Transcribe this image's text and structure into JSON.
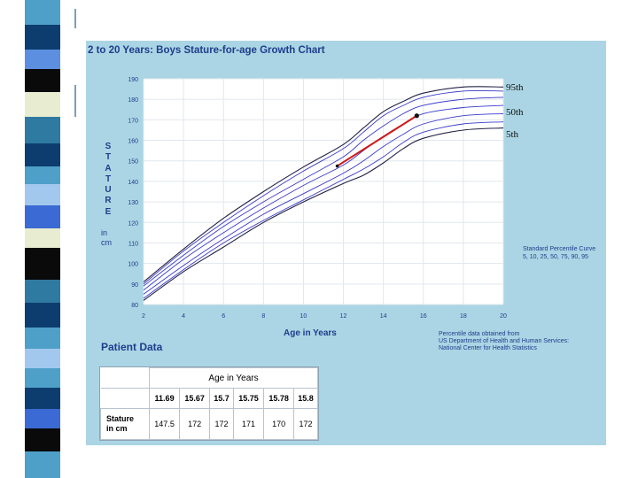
{
  "header": {
    "title": "2 to 20 Years: Boys Stature-for-age Growth Chart"
  },
  "chart_data": {
    "type": "line",
    "title": "2 to 20 Years: Boys Stature-for-age Growth Chart",
    "xlabel": "Age in Years",
    "ylabel": "STATURE",
    "yunit_lines": [
      "in",
      "cm"
    ],
    "xlim": [
      2,
      20
    ],
    "ylim": [
      80,
      190
    ],
    "x_ticks": [
      2,
      4,
      6,
      8,
      10,
      12,
      14,
      16,
      18,
      20
    ],
    "y_ticks": [
      80,
      90,
      100,
      110,
      120,
      130,
      140,
      150,
      160,
      170,
      180,
      190
    ],
    "percentile_labels": [
      "95th",
      "50th",
      "5th"
    ],
    "percentile_note": [
      "Standard Percentile Curve",
      "5, 10, 25, 50, 75, 90, 95"
    ],
    "series": [
      {
        "name": "5th",
        "x": [
          2,
          4,
          6,
          8,
          10,
          12,
          13,
          14,
          15,
          16,
          18,
          20
        ],
        "y": [
          82,
          96,
          108,
          120,
          130,
          139,
          143,
          149,
          156,
          161,
          165,
          166
        ]
      },
      {
        "name": "10th",
        "x": [
          2,
          4,
          6,
          8,
          10,
          12,
          13,
          14,
          15,
          16,
          18,
          20
        ],
        "y": [
          83,
          97,
          110,
          121,
          131,
          141,
          146,
          152,
          159,
          164,
          168,
          169
        ]
      },
      {
        "name": "25th",
        "x": [
          2,
          4,
          6,
          8,
          10,
          12,
          13,
          14,
          15,
          16,
          18,
          20
        ],
        "y": [
          85,
          99,
          112,
          124,
          134,
          144,
          150,
          157,
          163,
          168,
          172,
          173
        ]
      },
      {
        "name": "50th",
        "x": [
          2,
          4,
          6,
          8,
          10,
          12,
          13,
          14,
          15,
          16,
          18,
          20
        ],
        "y": [
          87,
          102,
          115,
          127,
          138,
          148,
          155,
          162,
          168,
          173,
          176,
          177
        ]
      },
      {
        "name": "75th",
        "x": [
          2,
          4,
          6,
          8,
          10,
          12,
          13,
          14,
          15,
          16,
          18,
          20
        ],
        "y": [
          89,
          104,
          118,
          130,
          141,
          152,
          160,
          167,
          173,
          177,
          180,
          181
        ]
      },
      {
        "name": "90th",
        "x": [
          2,
          4,
          6,
          8,
          10,
          12,
          13,
          14,
          15,
          16,
          18,
          20
        ],
        "y": [
          90,
          106,
          120,
          133,
          145,
          156,
          164,
          172,
          177,
          181,
          184,
          184
        ]
      },
      {
        "name": "95th",
        "x": [
          2,
          4,
          6,
          8,
          10,
          12,
          13,
          14,
          15,
          16,
          18,
          20
        ],
        "y": [
          91,
          107,
          122,
          135,
          147,
          158,
          166,
          174,
          179,
          183,
          186,
          186
        ]
      }
    ],
    "patient_points": {
      "x": [
        11.69,
        15.67
      ],
      "y": [
        147.5,
        172
      ]
    }
  },
  "patient_data": {
    "title": "Patient Data",
    "age_header": "Age in Years",
    "row_label": [
      "Stature",
      "in cm"
    ],
    "ages": [
      "11.69",
      "15.67",
      "15.7",
      "15.75",
      "15.78",
      "15.8"
    ],
    "statures": [
      "147.5",
      "172",
      "172",
      "171",
      "170",
      "172"
    ]
  },
  "source_note": [
    "Percentile data obtained from",
    "US Department of Health and Human Services:",
    "National Center for Health Statistics"
  ],
  "colors": {
    "panel": "#abd5e4",
    "curve": "#3a3ac8",
    "patient_line": "#d01818",
    "title": "#1f3d8c"
  }
}
